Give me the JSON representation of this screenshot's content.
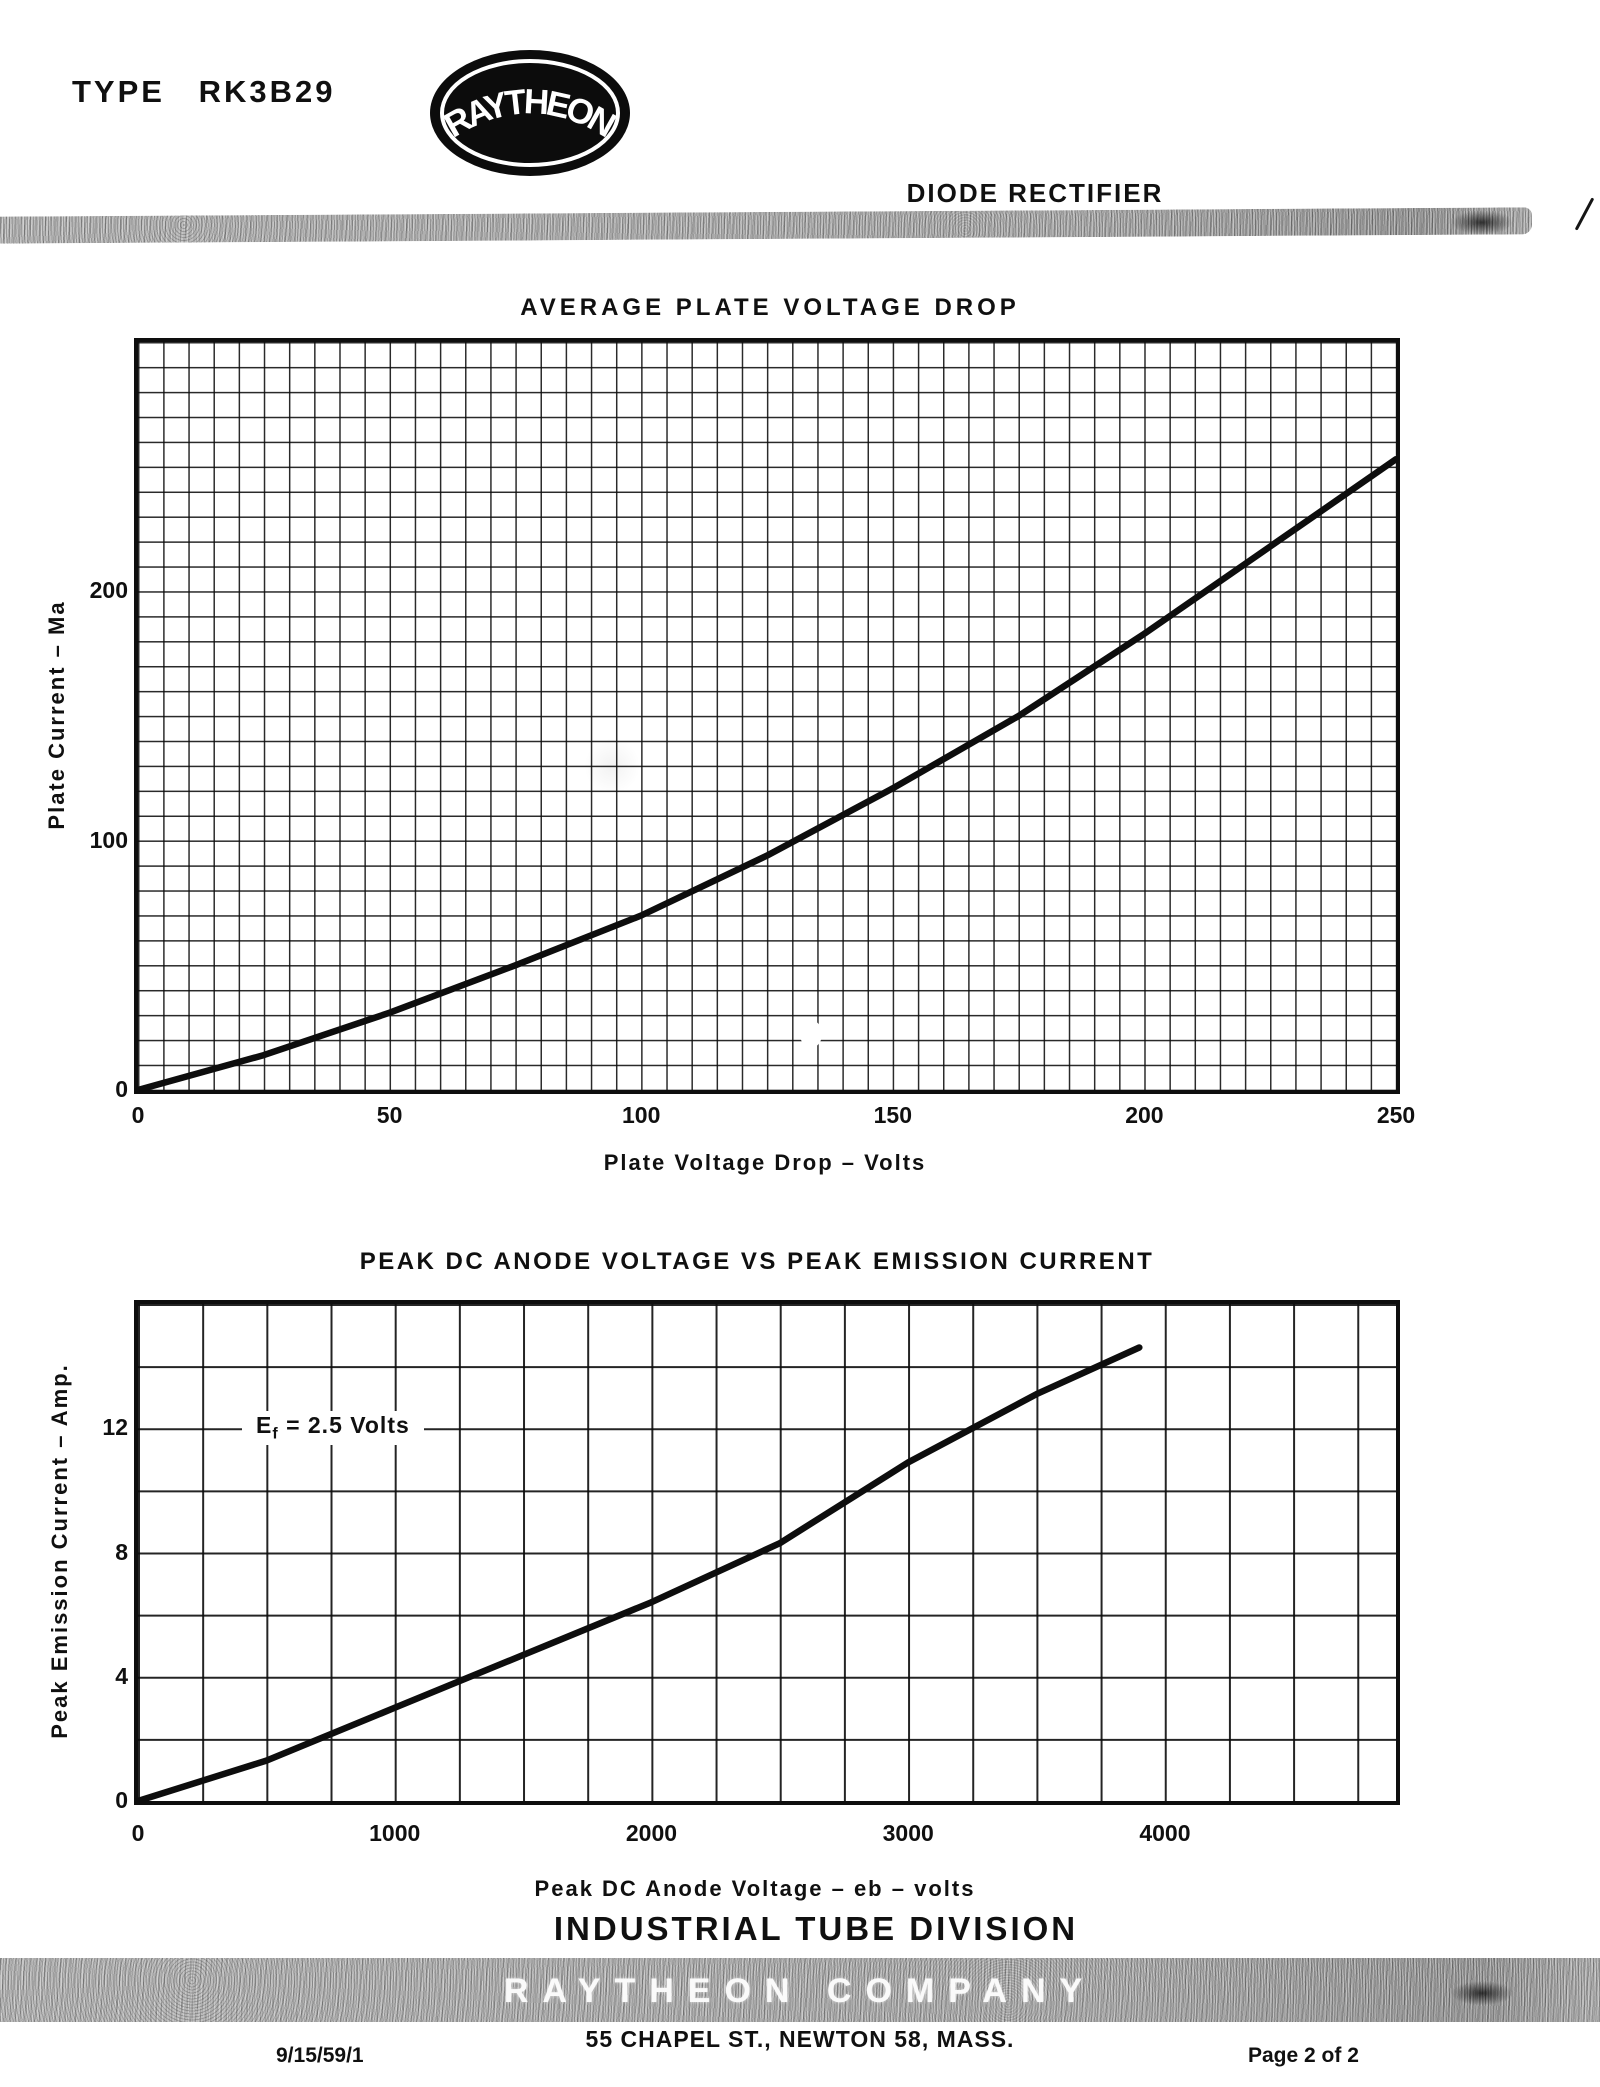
{
  "page": {
    "type_label": "TYPE RK3B29",
    "logo_text": "RAYTHEON",
    "subtitle": "DIODE RECTIFIER",
    "footer": {
      "division": "INDUSTRIAL TUBE DIVISION",
      "company_band": "RAYTHEON COMPANY",
      "address": "55 CHAPEL ST., NEWTON 58, MASS.",
      "doc_code": "9/15/59/1",
      "page_number": "Page 2 of 2"
    },
    "colors": {
      "ink": "#101010",
      "paper": "#ffffff",
      "band_gray": "#b3b3b3"
    }
  },
  "chart_data": [
    {
      "type": "line",
      "title": "AVERAGE PLATE VOLTAGE DROP",
      "xlabel": "Plate Voltage Drop – Volts",
      "ylabel": "Plate Current – Ma",
      "xlim": [
        0,
        250
      ],
      "ylim": [
        0,
        300
      ],
      "x_ticks": [
        0,
        50,
        100,
        150,
        200,
        250
      ],
      "y_ticks": [
        0,
        100,
        200
      ],
      "grid": {
        "on": true,
        "x_minor_step_volts": 5,
        "y_minor_step_ma": 10
      },
      "legend": "none",
      "series": [
        {
          "name": "average plate voltage drop",
          "x": [
            0,
            25,
            50,
            75,
            100,
            125,
            150,
            175,
            200,
            225,
            250
          ],
          "y": [
            0,
            14,
            31,
            50,
            70,
            94,
            121,
            150,
            183,
            218,
            253
          ]
        }
      ]
    },
    {
      "type": "line",
      "title": "PEAK DC ANODE VOLTAGE VS PEAK EMISSION CURRENT",
      "xlabel": "Peak DC Anode Voltage – eb – volts",
      "ylabel": "Peak Emission Current – Amp.",
      "xlim": [
        0,
        4900
      ],
      "ylim": [
        0,
        16
      ],
      "x_ticks": [
        0,
        1000,
        2000,
        3000,
        4000
      ],
      "y_ticks": [
        0,
        4,
        8,
        12
      ],
      "grid": {
        "on": true,
        "x_minor_step_volts": 250,
        "y_minor_step_amp": 2
      },
      "legend": "none",
      "annotation": {
        "prefix": "E",
        "sub": "f",
        "rest": "= 2.5 Volts",
        "y_value": 12
      },
      "series": [
        {
          "name": "peak emission current",
          "x": [
            0,
            500,
            1000,
            1500,
            2000,
            2500,
            3000,
            3500,
            3900
          ],
          "y": [
            0,
            1.3,
            3.0,
            4.7,
            6.4,
            8.3,
            10.9,
            13.1,
            14.6
          ]
        }
      ]
    }
  ]
}
